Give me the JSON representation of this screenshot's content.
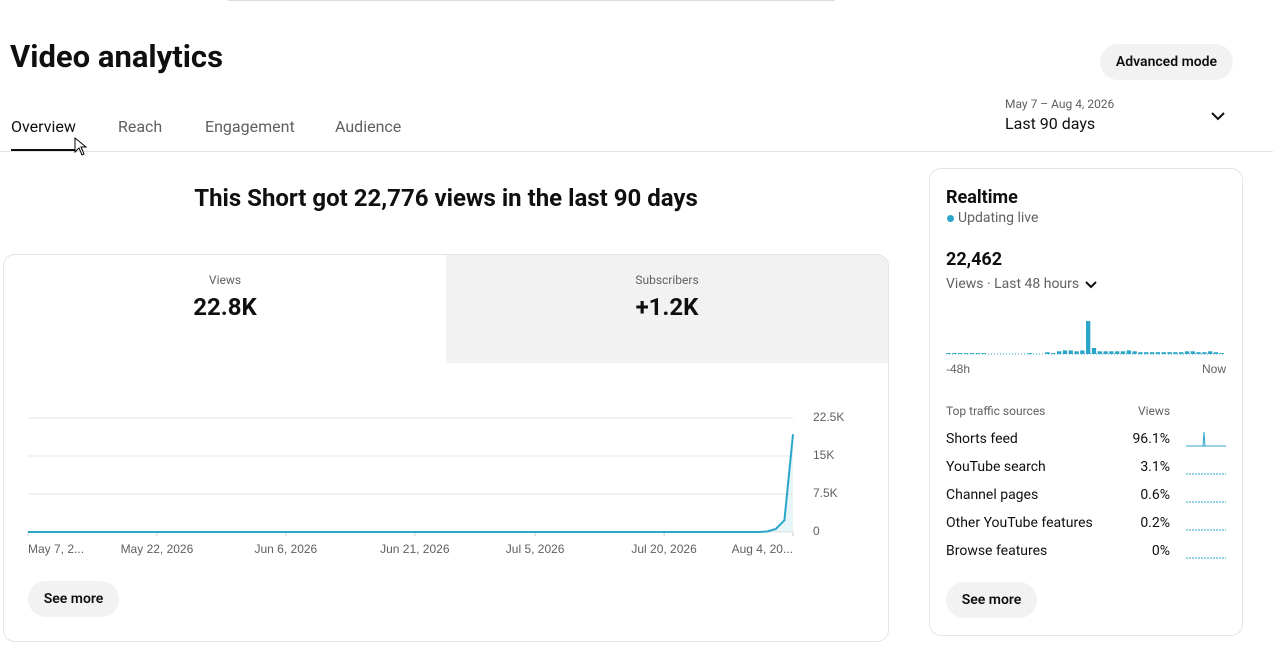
{
  "header": {
    "title": "Video analytics",
    "advanced_mode": "Advanced mode",
    "tabs": [
      "Overview",
      "Reach",
      "Engagement",
      "Audience"
    ],
    "date_range": "May 7 – Aug 4, 2026",
    "period": "Last 90 days"
  },
  "summary": "This Short got 22,776 views in the last 90 days",
  "metrics": [
    {
      "label": "Views",
      "value": "22.8K"
    },
    {
      "label": "Subscribers",
      "value": "+1.2K"
    }
  ],
  "see_more": "See more",
  "realtime": {
    "title": "Realtime",
    "status": "Updating live",
    "count": "22,462",
    "caption": "Views · Last 48 hours",
    "sources_header": [
      "Top traffic sources",
      "Views"
    ],
    "sources": [
      [
        "Shorts feed",
        "96.1%"
      ],
      [
        "YouTube search",
        "3.1%"
      ],
      [
        "Channel pages",
        "0.6%"
      ],
      [
        "Other YouTube features",
        "0.2%"
      ],
      [
        "Browse features",
        "0%"
      ]
    ],
    "see_more": "See more"
  },
  "chart_data": [
    {
      "type": "line",
      "color": "#2ba5c9",
      "x": [
        0,
        85,
        86,
        87,
        88,
        89
      ],
      "values": [
        0,
        0,
        100,
        600,
        2300,
        19300
      ],
      "xlim": [
        0,
        89
      ],
      "xticks": [
        {
          "value": 0,
          "label": "May 7, 2..."
        },
        {
          "value": 15,
          "label": "May 22, 2026"
        },
        {
          "value": 30,
          "label": "Jun 6, 2026"
        },
        {
          "value": 45,
          "label": "Jun 21, 2026"
        },
        {
          "value": 59,
          "label": "Jul 5, 2026"
        },
        {
          "value": 74,
          "label": "Jul 20, 2026"
        },
        {
          "value": 89,
          "label": "Aug 4, 20..."
        }
      ],
      "ylim": [
        0,
        22500
      ],
      "yticks": [
        0,
        {
          "value": 7500,
          "label": "7.5K"
        },
        {
          "value": 15000,
          "label": "15K"
        },
        {
          "value": 22500,
          "label": "22.5K"
        }
      ],
      "grid": true
    },
    {
      "type": "bar",
      "color": "#2ba5c9",
      "ylim": [
        0,
        12000
      ],
      "values": [
        300,
        300,
        300,
        300,
        300,
        300,
        300,
        0,
        0,
        0,
        0,
        0,
        0,
        0,
        300,
        0,
        0,
        600,
        300,
        900,
        1200,
        1200,
        900,
        1200,
        11000,
        2000,
        900,
        900,
        900,
        900,
        900,
        1200,
        900,
        600,
        600,
        600,
        600,
        600,
        600,
        600,
        600,
        900,
        900,
        600,
        600,
        900,
        600,
        300
      ],
      "x_labels": [
        "-48h",
        "Now"
      ]
    }
  ]
}
